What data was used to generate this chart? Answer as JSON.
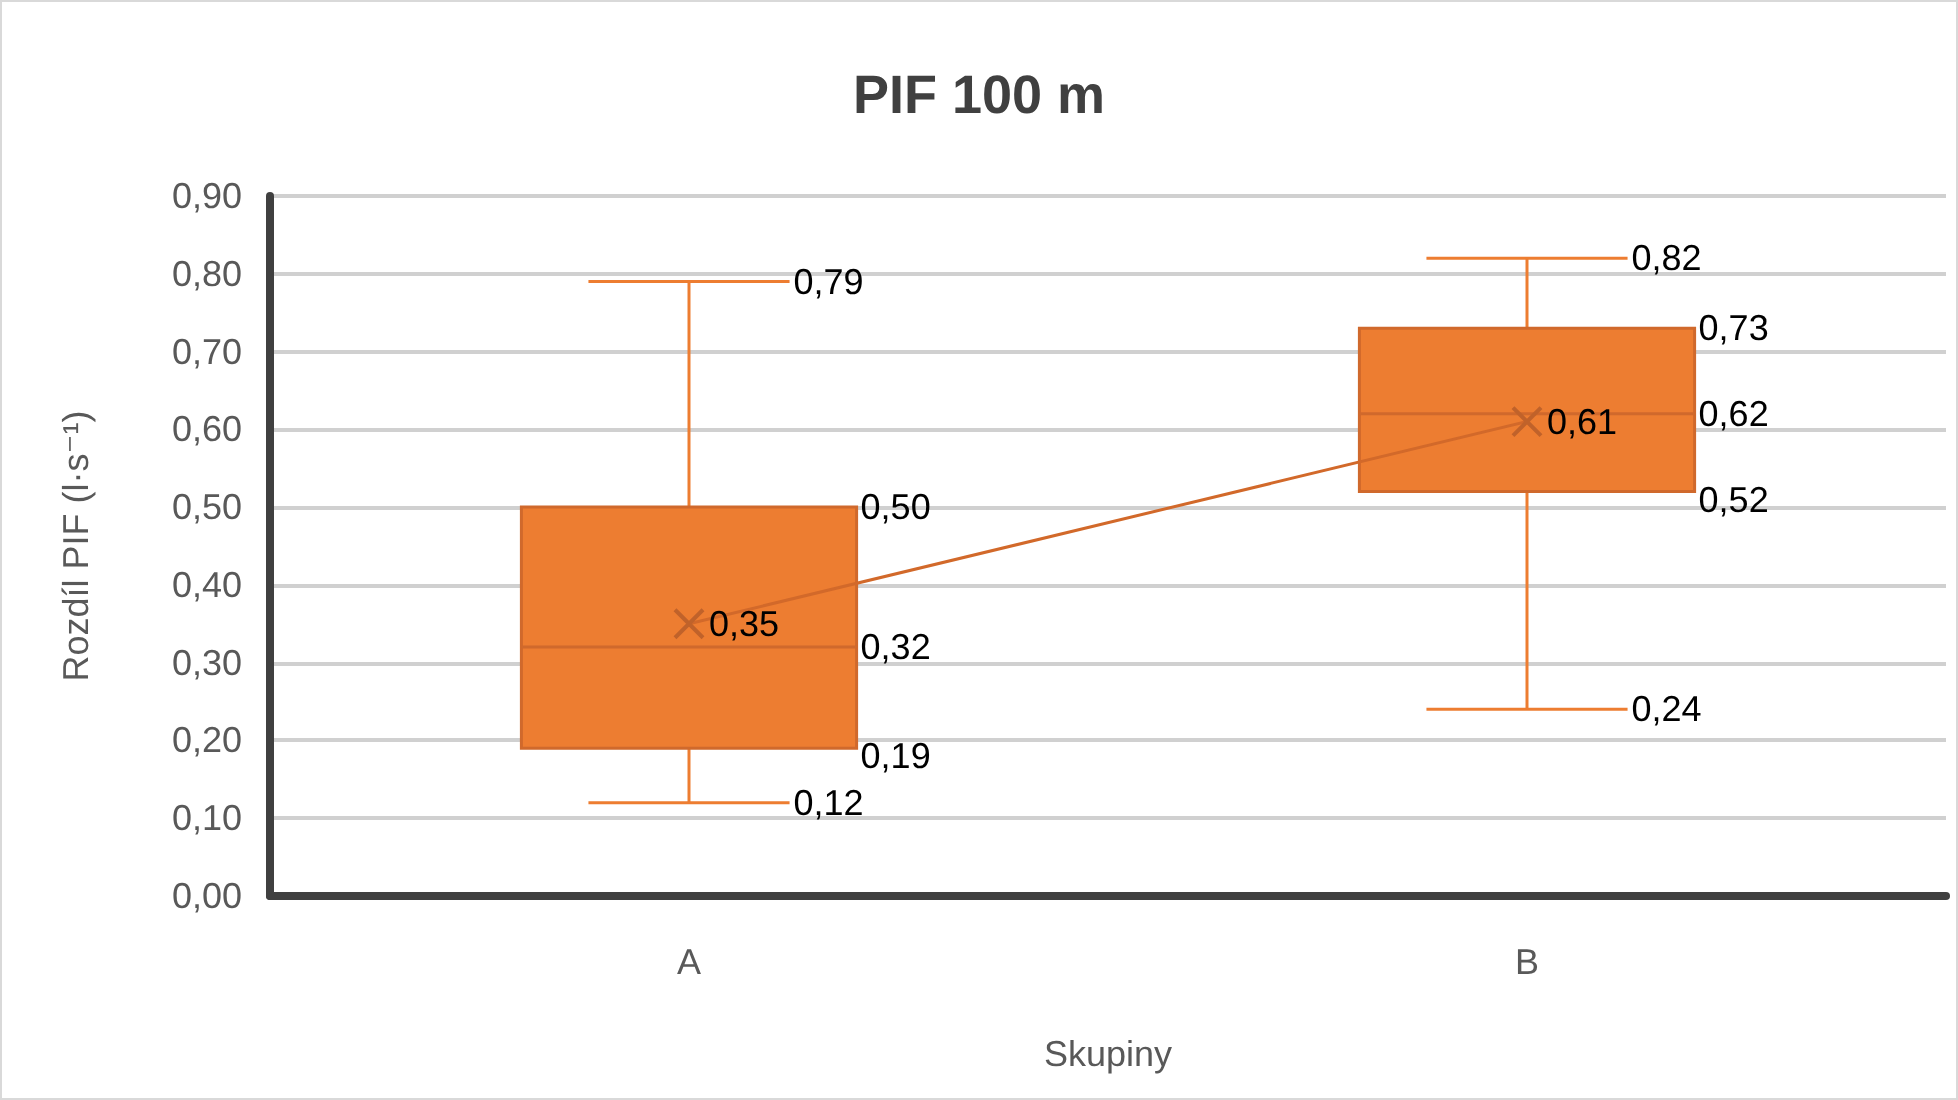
{
  "chart_data": {
    "type": "box",
    "title": "PIF 100 m",
    "xlabel": "Skupiny",
    "ylabel": "Rozdíl PIF (l·s⁻¹)",
    "categories": [
      "A",
      "B"
    ],
    "series": [
      {
        "color": "#ed7d31",
        "boxes": [
          {
            "low": 0.12,
            "q1": 0.19,
            "median": 0.32,
            "q3": 0.5,
            "high": 0.79
          },
          {
            "low": 0.24,
            "q1": 0.52,
            "median": 0.62,
            "q3": 0.73,
            "high": 0.82
          }
        ],
        "value_labels": [
          [
            "0,12",
            "0,19",
            "0,32",
            "0,50",
            "0,79"
          ],
          [
            "0,24",
            "0,52",
            "0,62",
            "0,73",
            "0,82"
          ]
        ]
      },
      {
        "type": "line",
        "color": "#d2692a",
        "marker": "cross",
        "values": [
          0.35,
          0.61
        ],
        "value_labels": [
          "0,35",
          "0,61"
        ]
      }
    ],
    "ylim": [
      0,
      0.9
    ],
    "yticks": [
      {
        "value": 0,
        "label": "0,00"
      },
      {
        "value": 0.1,
        "label": "0,10"
      },
      {
        "value": 0.2,
        "label": "0,20"
      },
      {
        "value": 0.3,
        "label": "0,30"
      },
      {
        "value": 0.4,
        "label": "0,40"
      },
      {
        "value": 0.5,
        "label": "0,50"
      },
      {
        "value": 0.6,
        "label": "0,60"
      },
      {
        "value": 0.7,
        "label": "0,70"
      },
      {
        "value": 0.8,
        "label": "0,80"
      },
      {
        "value": 0.9,
        "label": "0,90"
      }
    ],
    "grid": "y"
  }
}
